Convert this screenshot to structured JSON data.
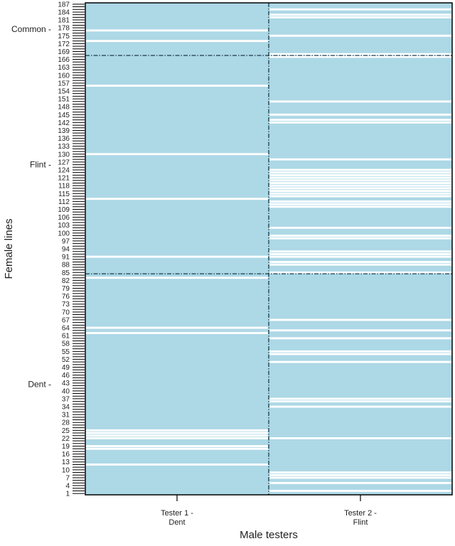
{
  "chart_data": {
    "type": "heatmap",
    "title": "",
    "xlabel": "Male testers",
    "ylabel": "Female lines",
    "rows": 187,
    "y_tick_step": 3,
    "present_color": "#add8e6",
    "missing_color": "#ffffff",
    "columns": [
      {
        "label_line1": "Tester 1 -",
        "label_line2": "Dent",
        "missing_rows": [
          12,
          18,
          19,
          22,
          23,
          24,
          25,
          62,
          64,
          83,
          91,
          113,
          130,
          156,
          173,
          177
        ]
      },
      {
        "label_line1": "Tester 2 -",
        "label_line2": "Flint",
        "missing_rows": [
          2,
          5,
          7,
          8,
          9,
          22,
          34,
          36,
          37,
          51,
          54,
          55,
          60,
          63,
          67,
          85,
          88,
          89,
          91,
          92,
          93,
          98,
          99,
          102,
          110,
          111,
          112,
          114,
          115,
          116,
          117,
          118,
          119,
          120,
          121,
          122,
          123,
          124,
          128,
          142,
          143,
          145,
          150,
          167,
          168,
          175,
          182,
          183,
          185
        ]
      }
    ],
    "groups": [
      {
        "label": "Common -",
        "from_row": 168,
        "to_row": 187
      },
      {
        "label": "Flint -",
        "from_row": 85,
        "to_row": 167
      },
      {
        "label": "Dent -",
        "from_row": 1,
        "to_row": 84
      }
    ],
    "group_boundaries_after_row": [
      84,
      167
    ]
  }
}
